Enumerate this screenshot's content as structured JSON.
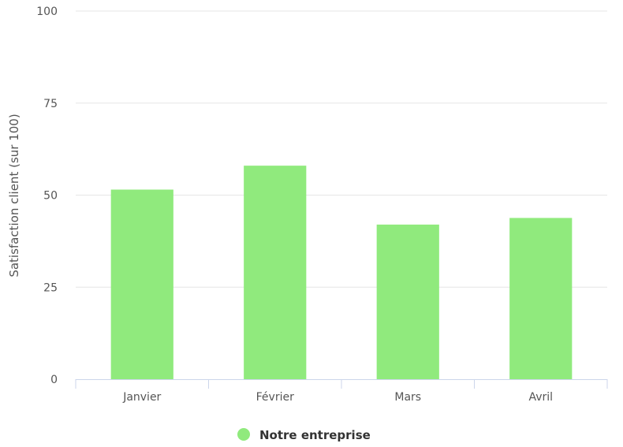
{
  "chart_data": {
    "type": "bar",
    "title": "",
    "xlabel": "",
    "ylabel": "Satisfaction client (sur 100)",
    "categories": [
      "Janvier",
      "Février",
      "Mars",
      "Avril"
    ],
    "series": [
      {
        "name": "Notre entreprise",
        "color": "#90ea7d",
        "values": [
          51.5,
          58,
          42,
          43.8
        ]
      }
    ],
    "ylim": [
      0,
      100
    ],
    "yticks": [
      0,
      25,
      50,
      75,
      100
    ],
    "grid": true,
    "legend": "bottom-center"
  }
}
